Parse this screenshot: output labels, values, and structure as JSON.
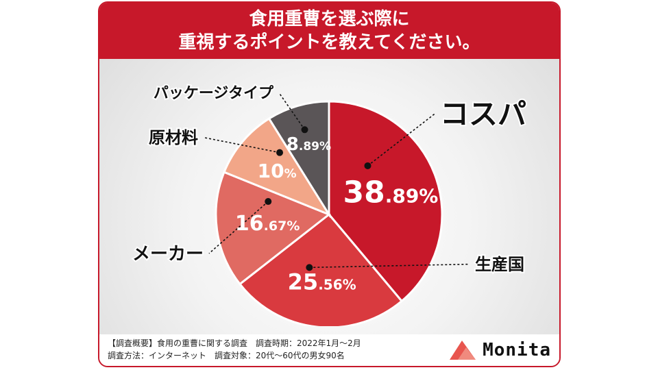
{
  "header": {
    "line1": "食用重曹を選ぶ際に",
    "line2": "重視するポイントを教えてください。"
  },
  "chart_data": {
    "type": "pie",
    "title": "食用重曹を選ぶ際に重視するポイントを教えてください。",
    "slices": [
      {
        "label": "コスパ",
        "value": 38.89,
        "int": "38",
        "dec": ".89%",
        "color": "#c7182a"
      },
      {
        "label": "生産国",
        "value": 25.56,
        "int": "25",
        "dec": ".56%",
        "color": "#d93a3f"
      },
      {
        "label": "メーカー",
        "value": 16.67,
        "int": "16",
        "dec": ".67%",
        "color": "#e06a62"
      },
      {
        "label": "原材料",
        "value": 10,
        "int": "10",
        "dec": "%",
        "color": "#f2a688"
      },
      {
        "label": "パッケージタイプ",
        "value": 8.89,
        "int": "8",
        "dec": ".89%",
        "color": "#5a5557"
      }
    ]
  },
  "footer": {
    "line1": "【調査概要】食用の重曹に関する調査　調査時期：2022年1月〜2月",
    "line2": "調査方法：インターネット　調査対象：20代〜60代の男女90名"
  },
  "logo": {
    "text": "Monita"
  }
}
